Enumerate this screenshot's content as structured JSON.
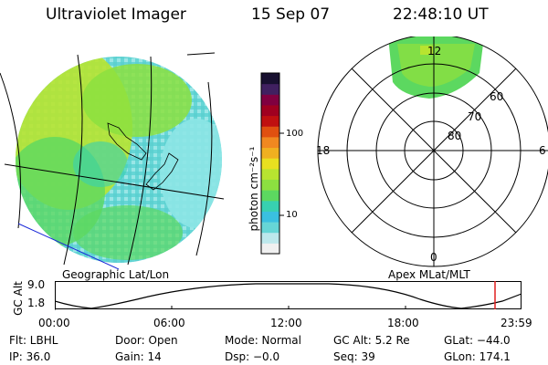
{
  "header": {
    "title": "Ultraviolet Imager",
    "date": "15 Sep 07",
    "time": "22:48:10 UT"
  },
  "colorbar": {
    "unit_label": "photon cm⁻²s⁻¹",
    "ticks": [
      "100",
      "10"
    ],
    "colors": [
      "#f0f0f0",
      "#bde8ec",
      "#66d6d6",
      "#3ac0e0",
      "#38d0b0",
      "#5cd860",
      "#8ce040",
      "#b8e430",
      "#e8e020",
      "#f0b020",
      "#f08820",
      "#e05010",
      "#c01010",
      "#a00020",
      "#800040",
      "#402060",
      "#181030"
    ]
  },
  "geo_panel": {
    "caption": "Geographic Lat/Lon"
  },
  "polar_panel": {
    "caption": "Apex MLat/MLT",
    "mlt_labels": [
      "12",
      "18",
      "6",
      "0"
    ],
    "lat_labels": [
      "60",
      "70",
      "80"
    ]
  },
  "timeline": {
    "y_axis_title": "GC Alt",
    "y_ticks": [
      "9.0",
      "1.8"
    ],
    "x_ticks": [
      "00:00",
      "06:00",
      "12:00",
      "18:00",
      "23:59"
    ],
    "current_marker_color": "#e02020"
  },
  "status": {
    "row1": [
      "Flt: LBHL",
      "Door: Open",
      "Mode: Normal",
      "GC Alt: 5.2 Re",
      "GLat: −44.0"
    ],
    "row2": [
      "IP: 36.0",
      "Gain: 14",
      "Dsp:  −0.0",
      "Seq: 39",
      "GLon: 174.1"
    ]
  }
}
